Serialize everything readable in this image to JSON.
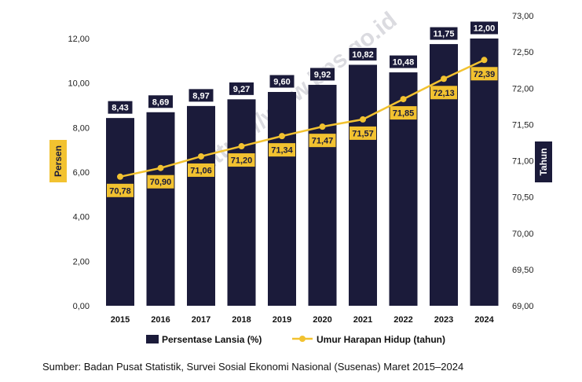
{
  "chart_data": {
    "type": "bar",
    "categories": [
      "2015",
      "2016",
      "2017",
      "2018",
      "2019",
      "2020",
      "2021",
      "2022",
      "2023",
      "2024"
    ],
    "series": [
      {
        "name": "Persentase Lansia (%)",
        "kind": "bar",
        "axis": "left",
        "color": "#1b1b3a",
        "values": [
          8.43,
          8.69,
          8.97,
          9.27,
          9.6,
          9.92,
          10.82,
          10.48,
          11.75,
          12.0
        ],
        "labels": [
          "8,43",
          "8,69",
          "8,97",
          "9,27",
          "9,60",
          "9,92",
          "10,82",
          "10,48",
          "11,75",
          "12,00"
        ]
      },
      {
        "name": "Umur Harapan Hidup (tahun)",
        "kind": "line",
        "axis": "right",
        "color": "#f2c230",
        "values": [
          70.78,
          70.9,
          71.06,
          71.2,
          71.34,
          71.47,
          71.57,
          71.85,
          72.13,
          72.39
        ],
        "labels": [
          "70,78",
          "70,90",
          "71,06",
          "71,20",
          "71,34",
          "71,47",
          "71,57",
          "71,85",
          "72,13",
          "72,39"
        ]
      }
    ],
    "ylabel": "Persen",
    "y2label": "Tahun",
    "ylim": [
      0,
      12
    ],
    "y2lim": [
      69,
      73
    ],
    "yticks": [
      "0,00",
      "2,00",
      "4,00",
      "6,00",
      "8,00",
      "10,00",
      "12,00"
    ],
    "y2ticks": [
      "69,00",
      "69,50",
      "70,00",
      "70,50",
      "71,00",
      "71,50",
      "72,00",
      "72,50",
      "73,00"
    ],
    "legend_position": "bottom",
    "grid": false,
    "watermark": "https://www.bps.go.id",
    "source": "Sumber: Badan Pusat Statistik, Survei Sosial Ekonomi Nasional (Susenas) Maret 2015–2024"
  }
}
